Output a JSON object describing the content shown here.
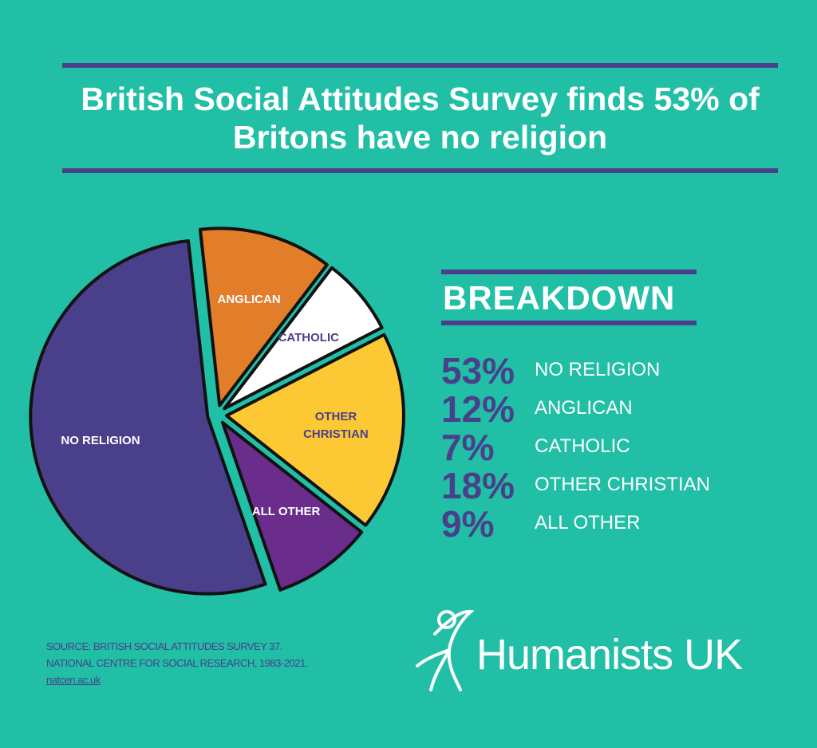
{
  "chart_data": {
    "type": "pie",
    "title": "British Social Attitudes Survey finds 53% of Britons have no religion",
    "heading": "BREAKDOWN",
    "categories": [
      "NO RELIGION",
      "ANGLICAN",
      "CATHOLIC",
      "OTHER CHRISTIAN",
      "ALL OTHER"
    ],
    "values": [
      53,
      12,
      7,
      18,
      9
    ],
    "value_labels": [
      "53%",
      "12%",
      "7%",
      "18%",
      "9%"
    ],
    "colors": [
      "#4a3f8a",
      "#e27d2a",
      "#ffffff",
      "#fcc935",
      "#6a2d8c"
    ],
    "source": [
      "SOURCE: BRITISH SOCIAL ATTITUDES SURVEY 37.",
      "NATIONAL CENTRE FOR SOCIAL RESEARCH, 1983-2021.",
      "natcen.ac.uk"
    ],
    "brand": "Humanists UK"
  }
}
